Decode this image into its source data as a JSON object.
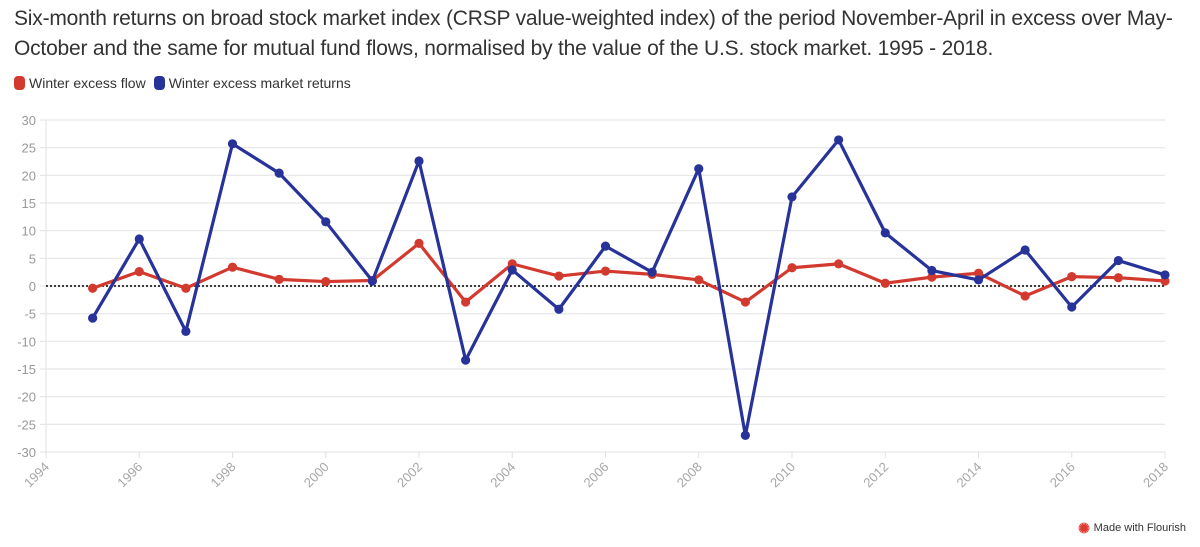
{
  "title": "Six-month returns on broad stock market index (CRSP value-weighted index) of the period November-April in excess over May-October and the same for mutual fund flows, normalised by the value of the U.S. stock market. 1995 - 2018.",
  "legend": [
    {
      "label": "Winter excess flow",
      "color": "#d33a2f"
    },
    {
      "label": "Winter excess market returns",
      "color": "#28339a"
    }
  ],
  "footer": {
    "label": "Made with Flourish",
    "icon": "flourish-logo-icon",
    "icon_color": "#e03a2c"
  },
  "chart_data": {
    "type": "line",
    "title": "Six-month returns on broad stock market index (CRSP value-weighted index) of the period November-April in excess over May-October and the same for mutual fund flows, normalised by the value of the U.S. stock market. 1995 - 2018.",
    "xlabel": "",
    "ylabel": "",
    "xlim": [
      1994,
      2018
    ],
    "ylim": [
      -30,
      30
    ],
    "x_ticks": [
      1994,
      1996,
      1998,
      2000,
      2002,
      2004,
      2006,
      2008,
      2010,
      2012,
      2014,
      2016,
      2018
    ],
    "y_ticks": [
      30,
      25,
      20,
      15,
      10,
      5,
      0,
      -5,
      -10,
      -15,
      -20,
      -25,
      -30
    ],
    "grid": true,
    "legend_position": "top-left",
    "reference_line": {
      "y": 0,
      "style": "dotted",
      "color": "#000000"
    },
    "x": [
      1995,
      1996,
      1997,
      1998,
      1999,
      2000,
      2001,
      2002,
      2003,
      2004,
      2005,
      2006,
      2007,
      2008,
      2009,
      2010,
      2011,
      2012,
      2013,
      2014,
      2015,
      2016,
      2017,
      2018
    ],
    "series": [
      {
        "name": "Winter excess flow",
        "color": "#d33a2f",
        "values": [
          -0.4,
          2.6,
          -0.4,
          3.4,
          1.2,
          0.8,
          1.0,
          7.7,
          -2.9,
          4.0,
          1.8,
          2.7,
          2.1,
          1.1,
          -2.9,
          3.3,
          4.0,
          0.5,
          1.6,
          2.3,
          -1.8,
          1.7,
          1.5,
          0.9
        ]
      },
      {
        "name": "Winter excess market returns",
        "color": "#28339a",
        "values": [
          -5.8,
          8.5,
          -8.2,
          25.7,
          20.4,
          11.6,
          0.9,
          22.6,
          -13.4,
          2.9,
          -4.2,
          7.2,
          2.5,
          21.2,
          -27.0,
          16.1,
          26.4,
          9.6,
          2.8,
          1.1,
          6.5,
          -3.8,
          4.6,
          2.0
        ]
      }
    ]
  }
}
